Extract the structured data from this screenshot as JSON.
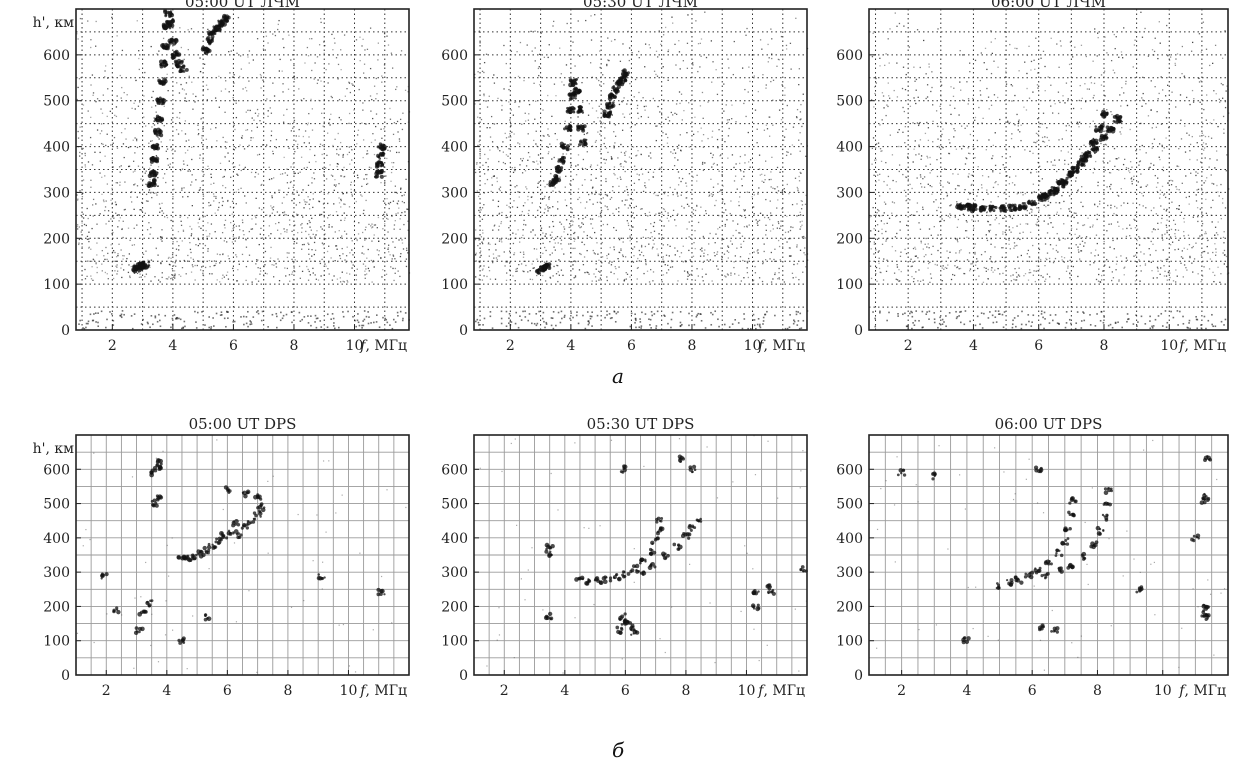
{
  "figure": {
    "row_a_label": "а",
    "row_b_label": "б"
  },
  "chart_data": [
    {
      "type": "scatter",
      "title": "05:00 UT ЛЧМ",
      "ylabel": "h', км",
      "xlabel_var": "f",
      "xlabel_unit": ", МГц",
      "xlim": [
        0.8,
        11.8
      ],
      "ylim": [
        0,
        700
      ],
      "xticks": [
        2,
        4,
        6,
        8,
        10
      ],
      "yticks": [
        0,
        100,
        200,
        300,
        400,
        500,
        600
      ],
      "grid": "dotted",
      "background_noise": "dense",
      "show_ylabel": true,
      "series": [
        {
          "points": [
            [
              3.3,
              320
            ],
            [
              3.35,
              340
            ],
            [
              3.4,
              370
            ],
            [
              3.45,
              400
            ],
            [
              3.5,
              430
            ],
            [
              3.55,
              460
            ],
            [
              3.6,
              500
            ],
            [
              3.65,
              540
            ],
            [
              3.7,
              580
            ],
            [
              3.75,
              620
            ],
            [
              3.8,
              660
            ],
            [
              3.85,
              690
            ],
            [
              3.9,
              670
            ],
            [
              4.0,
              630
            ],
            [
              4.1,
              600
            ],
            [
              4.2,
              580
            ],
            [
              4.35,
              570
            ]
          ]
        },
        {
          "points": [
            [
              5.1,
              610
            ],
            [
              5.2,
              630
            ],
            [
              5.3,
              645
            ],
            [
              5.45,
              660
            ],
            [
              5.6,
              670
            ],
            [
              5.75,
              680
            ]
          ]
        },
        {
          "points": [
            [
              2.8,
              135
            ],
            [
              2.9,
              138
            ],
            [
              3.0,
              140
            ],
            [
              3.1,
              142
            ]
          ]
        },
        {
          "points": [
            [
              10.8,
              340
            ],
            [
              10.82,
              360
            ],
            [
              10.85,
              380
            ],
            [
              10.88,
              400
            ]
          ]
        }
      ]
    },
    {
      "type": "scatter",
      "title": "05:30 UT ЛЧМ",
      "ylabel": "",
      "xlabel_var": "f",
      "xlabel_unit": ", МГц",
      "xlim": [
        0.8,
        11.8
      ],
      "ylim": [
        0,
        700
      ],
      "xticks": [
        2,
        4,
        6,
        8,
        10
      ],
      "yticks": [
        0,
        100,
        200,
        300,
        400,
        500,
        600
      ],
      "grid": "dotted",
      "background_noise": "dense",
      "show_ylabel": false,
      "series": [
        {
          "points": [
            [
              3.4,
              320
            ],
            [
              3.5,
              330
            ],
            [
              3.6,
              350
            ],
            [
              3.7,
              370
            ],
            [
              3.8,
              400
            ],
            [
              3.9,
              440
            ],
            [
              4.0,
              480
            ],
            [
              4.05,
              510
            ],
            [
              4.1,
              540
            ],
            [
              4.2,
              520
            ],
            [
              4.3,
              480
            ],
            [
              4.35,
              440
            ],
            [
              4.4,
              410
            ]
          ]
        },
        {
          "points": [
            [
              5.2,
              470
            ],
            [
              5.3,
              490
            ],
            [
              5.4,
              510
            ],
            [
              5.5,
              525
            ],
            [
              5.6,
              540
            ],
            [
              5.7,
              550
            ],
            [
              5.8,
              560
            ]
          ]
        },
        {
          "points": [
            [
              3.0,
              130
            ],
            [
              3.1,
              135
            ],
            [
              3.2,
              138
            ]
          ]
        }
      ]
    },
    {
      "type": "scatter",
      "title": "06:00 UT ЛЧМ",
      "ylabel": "",
      "xlabel_var": "f",
      "xlabel_unit": ", МГц",
      "xlim": [
        0.8,
        11.8
      ],
      "ylim": [
        0,
        700
      ],
      "xticks": [
        2,
        4,
        6,
        8,
        10
      ],
      "yticks": [
        0,
        100,
        200,
        300,
        400,
        500,
        600
      ],
      "grid": "dotted",
      "background_noise": "dense",
      "show_ylabel": false,
      "series": [
        {
          "points": [
            [
              3.6,
              270
            ],
            [
              3.8,
              268
            ],
            [
              4.0,
              266
            ],
            [
              4.3,
              265
            ],
            [
              4.6,
              265
            ],
            [
              4.9,
              265
            ],
            [
              5.2,
              266
            ],
            [
              5.5,
              270
            ],
            [
              5.8,
              278
            ],
            [
              6.1,
              288
            ],
            [
              6.4,
              300
            ],
            [
              6.7,
              318
            ],
            [
              7.0,
              340
            ],
            [
              7.3,
              365
            ],
            [
              7.5,
              385
            ],
            [
              7.7,
              410
            ],
            [
              7.85,
              440
            ],
            [
              8.0,
              470
            ]
          ]
        },
        {
          "points": [
            [
              6.2,
              290
            ],
            [
              6.5,
              305
            ],
            [
              6.8,
              325
            ],
            [
              7.1,
              350
            ],
            [
              7.4,
              375
            ],
            [
              7.7,
              395
            ],
            [
              8.0,
              420
            ],
            [
              8.2,
              440
            ],
            [
              8.4,
              460
            ]
          ]
        }
      ]
    },
    {
      "type": "scatter",
      "title": "05:00 UT DPS",
      "ylabel": "h', км",
      "xlabel_var": "f",
      "xlabel_unit": ", МГц",
      "xlim": [
        1.0,
        12.0
      ],
      "ylim": [
        0,
        700
      ],
      "xticks": [
        2,
        4,
        6,
        8,
        10
      ],
      "yticks": [
        0,
        100,
        200,
        300,
        400,
        500,
        600
      ],
      "grid": "solid",
      "background_noise": "sparse",
      "show_ylabel": true,
      "series": [
        {
          "points": [
            [
              4.5,
              340
            ],
            [
              4.7,
              342
            ],
            [
              4.9,
              345
            ],
            [
              5.1,
              352
            ],
            [
              5.3,
              365
            ],
            [
              5.5,
              378
            ],
            [
              5.7,
              392
            ],
            [
              5.9,
              405
            ],
            [
              6.1,
              420
            ],
            [
              6.3,
              440
            ]
          ]
        },
        {
          "points": [
            [
              6.4,
              410
            ],
            [
              6.6,
              430
            ],
            [
              6.8,
              450
            ],
            [
              7.0,
              470
            ],
            [
              7.1,
              490
            ]
          ]
        },
        {
          "points": [
            [
              3.6,
              590
            ],
            [
              3.7,
              605
            ],
            [
              3.8,
              620
            ],
            [
              3.6,
              500
            ],
            [
              3.7,
              515
            ]
          ]
        },
        {
          "points": [
            [
              6.0,
              540
            ],
            [
              6.6,
              530
            ],
            [
              7.0,
              520
            ]
          ]
        },
        {
          "points": [
            [
              1.9,
              290
            ],
            [
              2.3,
              190
            ],
            [
              3.1,
              130
            ],
            [
              3.4,
              210
            ],
            [
              3.2,
              180
            ],
            [
              4.5,
              100
            ],
            [
              5.3,
              170
            ],
            [
              9.1,
              285
            ],
            [
              11.1,
              240
            ]
          ]
        }
      ]
    },
    {
      "type": "scatter",
      "title": "05:30 UT DPS",
      "ylabel": "",
      "xlabel_var": "f",
      "xlabel_unit": ", МГц",
      "xlim": [
        1.0,
        12.0
      ],
      "ylim": [
        0,
        700
      ],
      "xticks": [
        2,
        4,
        6,
        8,
        10
      ],
      "yticks": [
        0,
        100,
        200,
        300,
        400,
        500,
        600
      ],
      "grid": "solid",
      "background_noise": "sparse",
      "show_ylabel": false,
      "series": [
        {
          "points": [
            [
              4.5,
              280
            ],
            [
              4.8,
              275
            ],
            [
              5.1,
              275
            ],
            [
              5.4,
              278
            ],
            [
              5.7,
              285
            ],
            [
              6.0,
              295
            ],
            [
              6.3,
              310
            ],
            [
              6.6,
              330
            ],
            [
              6.9,
              360
            ],
            [
              7.0,
              390
            ],
            [
              7.1,
              420
            ],
            [
              7.15,
              450
            ]
          ]
        },
        {
          "points": [
            [
              6.5,
              300
            ],
            [
              6.9,
              320
            ],
            [
              7.3,
              345
            ],
            [
              7.7,
              375
            ],
            [
              8.0,
              405
            ],
            [
              8.2,
              430
            ],
            [
              8.4,
              455
            ]
          ]
        },
        {
          "points": [
            [
              5.8,
              130
            ],
            [
              6.0,
              150
            ],
            [
              6.2,
              140
            ],
            [
              6.3,
              125
            ],
            [
              6.1,
              160
            ],
            [
              5.9,
              170
            ]
          ]
        },
        {
          "points": [
            [
              3.5,
              370
            ],
            [
              3.5,
              355
            ],
            [
              10.3,
              240
            ],
            [
              10.3,
              200
            ],
            [
              10.8,
              255
            ],
            [
              10.8,
              245
            ],
            [
              8.2,
              600
            ],
            [
              5.9,
              600
            ],
            [
              7.8,
              630
            ],
            [
              3.5,
              170
            ],
            [
              11.9,
              310
            ]
          ]
        }
      ]
    },
    {
      "type": "scatter",
      "title": "06:00 UT DPS",
      "ylabel": "",
      "xlabel_var": "f",
      "xlabel_unit": ", МГц",
      "xlim": [
        1.0,
        12.0
      ],
      "ylim": [
        0,
        700
      ],
      "xticks": [
        2,
        4,
        6,
        8,
        10
      ],
      "yticks": [
        0,
        100,
        200,
        300,
        400,
        500,
        600
      ],
      "grid": "solid",
      "background_noise": "sparse",
      "show_ylabel": false,
      "series": [
        {
          "points": [
            [
              5.0,
              260
            ],
            [
              5.3,
              268
            ],
            [
              5.6,
              278
            ],
            [
              5.9,
              290
            ],
            [
              6.2,
              305
            ],
            [
              6.5,
              325
            ],
            [
              6.8,
              355
            ],
            [
              7.0,
              390
            ],
            [
              7.1,
              430
            ],
            [
              7.2,
              470
            ],
            [
              7.25,
              510
            ]
          ]
        },
        {
          "points": [
            [
              6.4,
              290
            ],
            [
              6.8,
              305
            ],
            [
              7.2,
              320
            ],
            [
              7.6,
              345
            ],
            [
              7.9,
              380
            ],
            [
              8.1,
              420
            ],
            [
              8.2,
              460
            ],
            [
              8.3,
              500
            ],
            [
              8.35,
              540
            ]
          ]
        },
        {
          "points": [
            [
              11.3,
              520
            ],
            [
              11.3,
              510
            ],
            [
              11.3,
              200
            ],
            [
              11.3,
              180
            ],
            [
              11.3,
              170
            ],
            [
              11.4,
              630
            ],
            [
              11.0,
              400
            ],
            [
              3.0,
              580
            ],
            [
              2.0,
              590
            ],
            [
              4.0,
              100
            ],
            [
              6.3,
              140
            ],
            [
              6.2,
              600
            ],
            [
              6.7,
              130
            ],
            [
              9.3,
              250
            ]
          ]
        }
      ]
    }
  ]
}
